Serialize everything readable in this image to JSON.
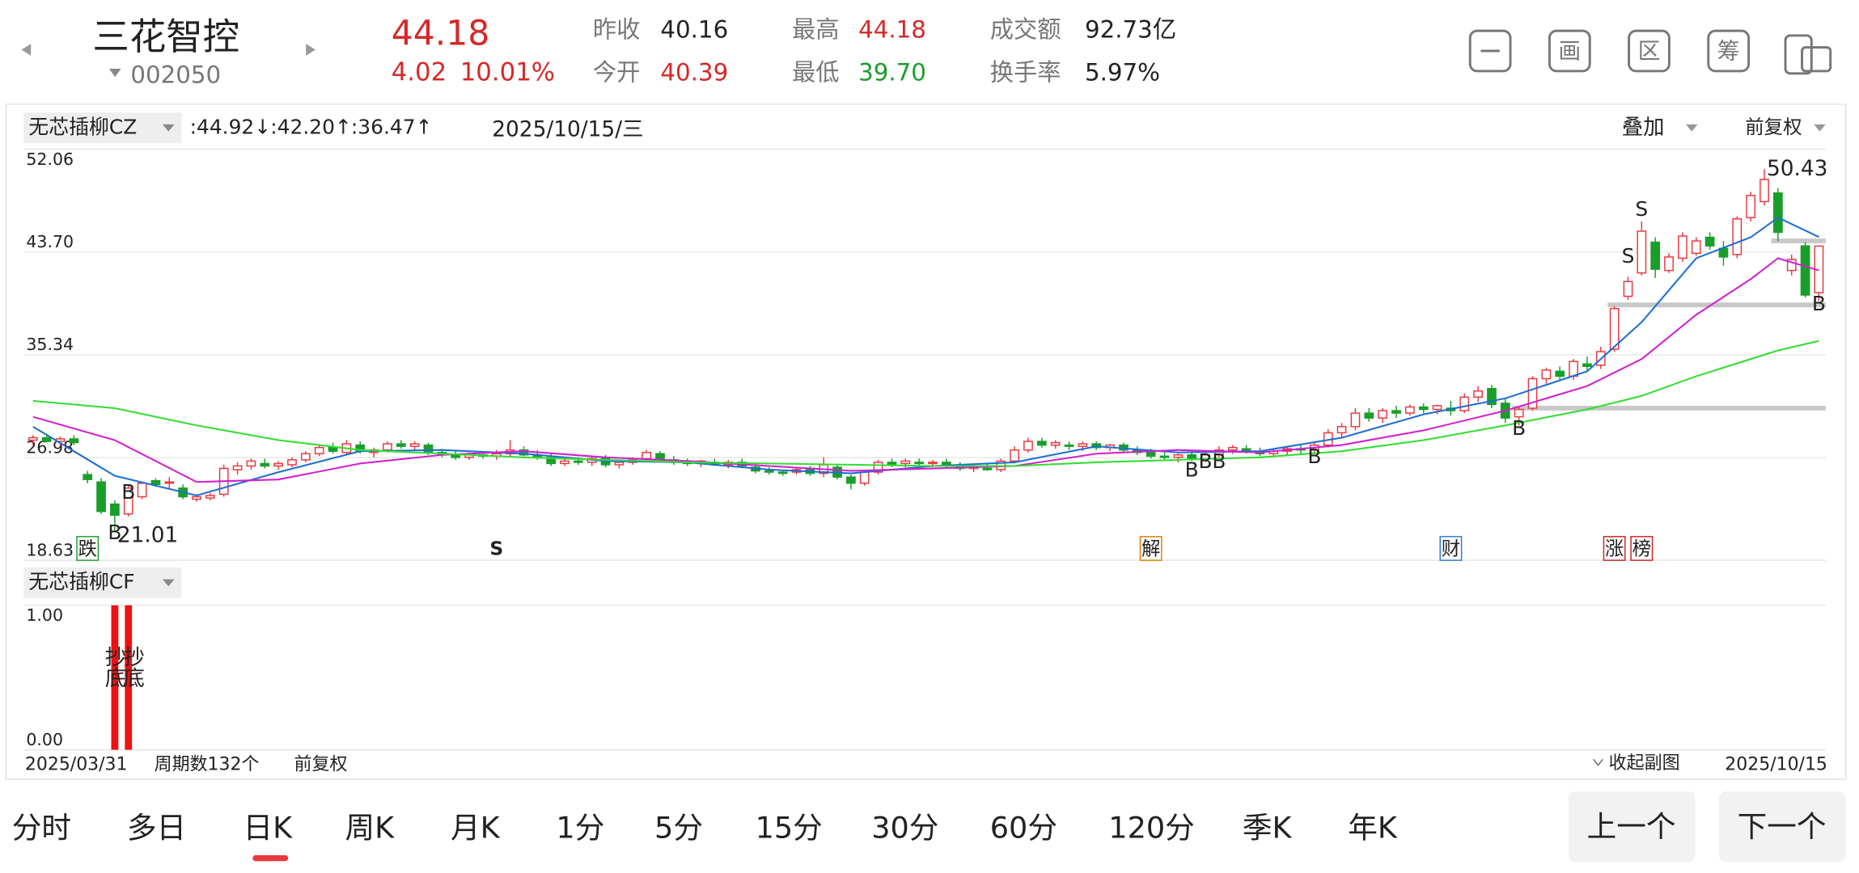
{
  "header": {
    "name": "三花智控",
    "code": "002050",
    "price": "44.18",
    "change": "4.02",
    "change_pct": "10.01%",
    "fields": [
      {
        "label": "昨收",
        "value": "40.16"
      },
      {
        "label": "今开",
        "value": "40.39"
      },
      {
        "label": "最高",
        "value": "44.18"
      },
      {
        "label": "最低",
        "value": "39.70"
      },
      {
        "label": "成交额",
        "value": "92.73亿"
      },
      {
        "label": "换手率",
        "value": "5.97%"
      }
    ]
  },
  "toolbar": {
    "buttons": [
      "画",
      "区",
      "筹"
    ]
  },
  "chart_bar": {
    "date": "2025/10/15/三",
    "overlay": "叠加",
    "adjust": "前复权"
  },
  "chart_data": [
    {
      "type": "candlestick",
      "indicator": "无芯插柳CZ",
      "ylim": [
        18.63,
        52.06
      ],
      "yticks": [
        52.06,
        {
          "value": 43.7,
          "label": "43.70"
        },
        35.34,
        26.98,
        18.63
      ],
      "grid": true,
      "up_color": "#e8383d",
      "down_color": "#1a9e2a",
      "ohlc": [
        [
          28.4,
          28.8,
          28.0,
          28.6
        ],
        [
          28.6,
          28.9,
          28.2,
          28.3
        ],
        [
          28.3,
          28.7,
          27.9,
          28.5
        ],
        [
          28.5,
          28.8,
          28.0,
          28.2
        ],
        [
          25.6,
          25.9,
          24.9,
          25.2
        ],
        [
          25.0,
          25.3,
          22.4,
          22.6
        ],
        [
          23.2,
          23.5,
          21.01,
          22.3
        ],
        [
          22.4,
          24.8,
          22.2,
          24.5
        ],
        [
          23.8,
          25.0,
          23.6,
          24.9
        ],
        [
          25.1,
          25.3,
          24.6,
          24.8
        ],
        [
          24.9,
          25.4,
          24.4,
          25.0
        ],
        [
          24.5,
          24.8,
          23.6,
          23.8
        ],
        [
          23.6,
          24.0,
          23.4,
          23.8
        ],
        [
          23.7,
          24.1,
          23.5,
          23.9
        ],
        [
          24.0,
          26.4,
          23.8,
          26.1
        ],
        [
          26.0,
          26.6,
          25.6,
          26.3
        ],
        [
          26.3,
          26.9,
          26.0,
          26.7
        ],
        [
          26.5,
          26.9,
          26.1,
          26.3
        ],
        [
          26.3,
          26.7,
          26.0,
          26.5
        ],
        [
          26.4,
          27.0,
          26.2,
          26.8
        ],
        [
          26.8,
          27.5,
          26.6,
          27.3
        ],
        [
          27.3,
          28.0,
          27.1,
          27.8
        ],
        [
          27.8,
          28.2,
          27.3,
          27.5
        ],
        [
          27.4,
          28.4,
          27.2,
          28.1
        ],
        [
          28.0,
          28.3,
          27.3,
          27.5
        ],
        [
          27.4,
          27.8,
          27.0,
          27.6
        ],
        [
          27.6,
          28.3,
          27.4,
          28.1
        ],
        [
          28.1,
          28.4,
          27.7,
          27.9
        ],
        [
          27.9,
          28.3,
          27.6,
          28.1
        ],
        [
          28.0,
          28.2,
          27.2,
          27.4
        ],
        [
          27.4,
          27.7,
          27.0,
          27.2
        ],
        [
          27.2,
          27.5,
          26.8,
          27.0
        ],
        [
          27.0,
          27.4,
          26.8,
          27.2
        ],
        [
          27.2,
          27.5,
          26.9,
          27.1
        ],
        [
          27.1,
          27.6,
          26.8,
          27.3
        ],
        [
          27.3,
          28.4,
          27.0,
          27.6
        ],
        [
          27.6,
          27.9,
          27.1,
          27.2
        ],
        [
          27.2,
          27.6,
          26.8,
          27.0
        ],
        [
          27.0,
          27.3,
          26.3,
          26.5
        ],
        [
          26.5,
          26.9,
          26.3,
          26.7
        ],
        [
          26.7,
          27.0,
          26.4,
          26.6
        ],
        [
          26.6,
          27.1,
          26.3,
          26.9
        ],
        [
          26.9,
          27.2,
          26.2,
          26.4
        ],
        [
          26.4,
          26.8,
          26.1,
          26.6
        ],
        [
          26.6,
          27.0,
          26.4,
          26.8
        ],
        [
          26.9,
          27.6,
          26.7,
          27.4
        ],
        [
          27.3,
          27.5,
          26.6,
          26.8
        ],
        [
          26.8,
          27.1,
          26.4,
          26.6
        ],
        [
          26.6,
          26.9,
          26.3,
          26.5
        ],
        [
          26.5,
          26.8,
          26.2,
          26.7
        ],
        [
          26.6,
          26.9,
          26.3,
          26.4
        ],
        [
          26.4,
          26.8,
          26.1,
          26.6
        ],
        [
          26.6,
          26.9,
          26.2,
          26.3
        ],
        [
          26.2,
          26.5,
          25.7,
          25.9
        ],
        [
          25.9,
          26.2,
          25.6,
          25.8
        ],
        [
          25.8,
          26.0,
          25.5,
          25.7
        ],
        [
          25.8,
          26.2,
          25.6,
          26.0
        ],
        [
          26.0,
          26.3,
          25.5,
          25.7
        ],
        [
          25.7,
          27.0,
          25.4,
          26.4
        ],
        [
          26.2,
          26.4,
          25.2,
          25.4
        ],
        [
          25.4,
          25.6,
          24.4,
          24.9
        ],
        [
          24.9,
          26.0,
          24.7,
          25.8
        ],
        [
          25.8,
          26.8,
          25.6,
          26.6
        ],
        [
          26.6,
          26.9,
          26.2,
          26.4
        ],
        [
          26.5,
          26.9,
          26.2,
          26.7
        ],
        [
          26.6,
          26.9,
          26.3,
          26.5
        ],
        [
          26.5,
          26.8,
          26.2,
          26.6
        ],
        [
          26.6,
          26.9,
          26.2,
          26.3
        ],
        [
          26.3,
          26.6,
          25.9,
          26.1
        ],
        [
          26.1,
          26.4,
          25.8,
          26.2
        ],
        [
          26.1,
          26.5,
          25.9,
          26.0
        ],
        [
          26.0,
          26.9,
          25.8,
          26.7
        ],
        [
          26.7,
          27.9,
          26.5,
          27.6
        ],
        [
          27.6,
          28.6,
          27.4,
          28.3
        ],
        [
          28.3,
          28.6,
          27.8,
          28.0
        ],
        [
          28.0,
          28.4,
          27.7,
          28.2
        ],
        [
          28.0,
          28.3,
          27.6,
          27.9
        ],
        [
          27.9,
          28.3,
          27.5,
          28.1
        ],
        [
          28.1,
          28.3,
          27.6,
          27.8
        ],
        [
          27.8,
          28.1,
          27.5,
          28.0
        ],
        [
          28.0,
          28.2,
          27.4,
          27.6
        ],
        [
          27.6,
          27.9,
          27.2,
          27.4
        ],
        [
          27.4,
          27.7,
          26.9,
          27.1
        ],
        [
          27.1,
          27.4,
          26.8,
          27.0
        ],
        [
          27.0,
          27.3,
          26.6,
          27.2
        ],
        [
          27.2,
          27.5,
          26.7,
          26.9
        ],
        [
          26.9,
          27.4,
          26.6,
          27.2
        ],
        [
          27.2,
          27.9,
          27.0,
          27.6
        ],
        [
          27.6,
          28.0,
          27.3,
          27.8
        ],
        [
          27.7,
          28.0,
          27.3,
          27.5
        ],
        [
          27.5,
          27.8,
          27.1,
          27.3
        ],
        [
          27.3,
          27.7,
          27.0,
          27.5
        ],
        [
          27.5,
          27.9,
          27.2,
          27.7
        ],
        [
          27.7,
          28.0,
          27.3,
          27.6
        ],
        [
          27.6,
          28.2,
          27.4,
          28.0
        ],
        [
          28.0,
          29.3,
          27.8,
          29.0
        ],
        [
          29.0,
          29.8,
          28.6,
          29.5
        ],
        [
          29.5,
          31.0,
          29.2,
          30.6
        ],
        [
          30.6,
          31.0,
          29.9,
          30.2
        ],
        [
          30.2,
          31.0,
          29.8,
          30.8
        ],
        [
          30.8,
          31.2,
          30.2,
          30.6
        ],
        [
          30.6,
          31.3,
          30.4,
          31.1
        ],
        [
          31.1,
          31.4,
          30.6,
          30.9
        ],
        [
          30.9,
          31.3,
          30.5,
          31.2
        ],
        [
          31.0,
          31.6,
          30.4,
          30.8
        ],
        [
          30.8,
          32.2,
          30.6,
          31.9
        ],
        [
          31.9,
          32.8,
          31.5,
          32.4
        ],
        [
          32.6,
          32.9,
          31.0,
          31.3
        ],
        [
          31.4,
          31.8,
          29.8,
          30.2
        ],
        [
          30.3,
          31.2,
          29.6,
          30.9
        ],
        [
          31.0,
          33.6,
          30.8,
          33.4
        ],
        [
          33.4,
          34.3,
          33.0,
          34.1
        ],
        [
          34.0,
          34.4,
          33.2,
          33.6
        ],
        [
          33.6,
          35.0,
          33.3,
          34.8
        ],
        [
          34.6,
          35.2,
          34.0,
          34.4
        ],
        [
          34.5,
          36.0,
          34.2,
          35.6
        ],
        [
          35.8,
          39.3,
          35.6,
          39.1
        ],
        [
          40.1,
          41.7,
          39.8,
          41.3
        ],
        [
          42.0,
          46.2,
          41.8,
          45.4
        ],
        [
          44.5,
          44.9,
          41.6,
          42.3
        ],
        [
          42.2,
          43.6,
          42.0,
          43.3
        ],
        [
          43.2,
          45.3,
          42.9,
          45.0
        ],
        [
          43.6,
          44.9,
          43.4,
          44.6
        ],
        [
          44.9,
          45.3,
          43.9,
          44.2
        ],
        [
          44.0,
          44.6,
          42.6,
          43.3
        ],
        [
          43.5,
          46.6,
          43.2,
          46.4
        ],
        [
          46.5,
          48.6,
          46.2,
          48.3
        ],
        [
          47.8,
          50.43,
          47.5,
          49.6
        ],
        [
          48.5,
          48.9,
          44.6,
          45.3
        ],
        [
          42.2,
          43.5,
          41.8,
          43.1
        ],
        [
          44.2,
          44.5,
          40.0,
          40.2
        ],
        [
          40.39,
          44.18,
          39.7,
          44.18
        ]
      ],
      "series": [
        {
          "legend_label": ":44.92↓",
          "color": "#1e6fd0",
          "x": [
            0,
            6,
            12,
            18,
            24,
            30,
            36,
            42,
            48,
            54,
            60,
            66,
            72,
            78,
            84,
            90,
            96,
            102,
            108,
            114,
            118,
            122,
            126,
            128,
            131
          ],
          "values": [
            29.5,
            25.5,
            23.9,
            25.8,
            27.5,
            27.6,
            27.3,
            26.7,
            26.6,
            26.0,
            25.7,
            26.3,
            26.6,
            27.9,
            27.4,
            27.5,
            28.6,
            30.5,
            31.8,
            34.0,
            38.0,
            43.2,
            44.9,
            46.5,
            44.92
          ]
        },
        {
          "legend_label": ":42.20↑",
          "color": "#d020d0",
          "x": [
            0,
            6,
            12,
            18,
            24,
            30,
            36,
            42,
            48,
            54,
            60,
            66,
            72,
            78,
            84,
            90,
            96,
            102,
            108,
            114,
            118,
            122,
            126,
            128,
            131
          ],
          "values": [
            30.3,
            28.4,
            25.0,
            25.2,
            26.5,
            27.2,
            27.5,
            27.0,
            26.7,
            26.3,
            25.9,
            26.1,
            26.3,
            27.3,
            27.6,
            27.4,
            28.0,
            29.2,
            30.8,
            32.8,
            35.0,
            38.6,
            41.5,
            43.2,
            42.2
          ]
        },
        {
          "legend_label": ":36.47↑",
          "color": "#33dd33",
          "x": [
            0,
            6,
            12,
            18,
            24,
            30,
            36,
            42,
            48,
            54,
            60,
            66,
            72,
            78,
            84,
            90,
            96,
            102,
            108,
            114,
            118,
            122,
            126,
            128,
            131
          ],
          "values": [
            31.6,
            31.0,
            29.6,
            28.4,
            27.6,
            27.3,
            27.0,
            26.8,
            26.6,
            26.5,
            26.4,
            26.3,
            26.3,
            26.6,
            26.8,
            27.0,
            27.5,
            28.4,
            29.6,
            30.9,
            32.0,
            33.6,
            35.0,
            35.7,
            36.47
          ]
        }
      ],
      "levels": [
        {
          "value": 44.6,
          "start": 128
        },
        {
          "value": 39.4,
          "start": 116
        },
        {
          "value": 31.0,
          "start": 109
        }
      ],
      "signals": [
        {
          "index": 6,
          "text": "B",
          "color": "#e020c0",
          "y": 20.8
        },
        {
          "index": 7,
          "text": "B",
          "color": "#e020c0",
          "y": 24.1
        },
        {
          "index": 85,
          "text": "B",
          "color": "#1010b0",
          "y": 25.9
        },
        {
          "index": 86,
          "text": "B",
          "color": "#1010b0",
          "y": 26.6
        },
        {
          "index": 87,
          "text": "B",
          "color": "#1010b0",
          "y": 26.6
        },
        {
          "index": 94,
          "text": "B",
          "color": "#1010b0",
          "y": 27.0
        },
        {
          "index": 109,
          "text": "B",
          "color": "#1010b0",
          "y": 29.3
        },
        {
          "index": 131,
          "text": "B",
          "color": "#1010b0",
          "y": 39.4
        },
        {
          "index": 117,
          "text": "S",
          "color": "#e020c0",
          "y": 43.3
        },
        {
          "index": 118,
          "text": "S",
          "color": "#e020c0",
          "y": 47.1
        }
      ],
      "events": [
        {
          "index": 4,
          "text": "跌",
          "color": "#1a9e2a",
          "box": true
        },
        {
          "index": 34,
          "text": "S",
          "color": "#c02020",
          "box": false
        },
        {
          "index": 82,
          "text": "解",
          "color": "#e07b00",
          "box": true
        },
        {
          "index": 104,
          "text": "财",
          "color": "#2a7ad0",
          "box": true
        },
        {
          "index": 116,
          "text": "涨",
          "color": "#d02020",
          "box": true
        },
        {
          "index": 118,
          "text": "榜",
          "color": "#d02020",
          "box": true
        }
      ],
      "annotations": [
        {
          "label": "50.43",
          "index": 127,
          "value": 50.43
        },
        {
          "label": "21.01",
          "index": 6,
          "value": 21.01
        }
      ]
    },
    {
      "type": "bar",
      "indicator": "无芯插柳CF",
      "ylim": [
        0,
        1
      ],
      "yticks": [
        {
          "value": 1,
          "label": "1.00"
        },
        {
          "value": 0,
          "label": "0.00"
        }
      ],
      "x": [
        6,
        7
      ],
      "values": [
        1,
        1
      ],
      "color": "#ee1111",
      "labels": [
        "抄底",
        "抄底"
      ]
    }
  ],
  "footer": {
    "start": "2025/03/31",
    "periods": "周期数132个",
    "adjust": "前复权",
    "collapse": "收起副图",
    "end": "2025/10/15"
  },
  "tabs": {
    "items": [
      "分时",
      "多日",
      "日K",
      "周K",
      "月K",
      "1分",
      "5分",
      "15分",
      "30分",
      "60分",
      "120分",
      "季K",
      "年K"
    ],
    "selected": 2
  },
  "nav": [
    "上一个",
    "下一个"
  ]
}
